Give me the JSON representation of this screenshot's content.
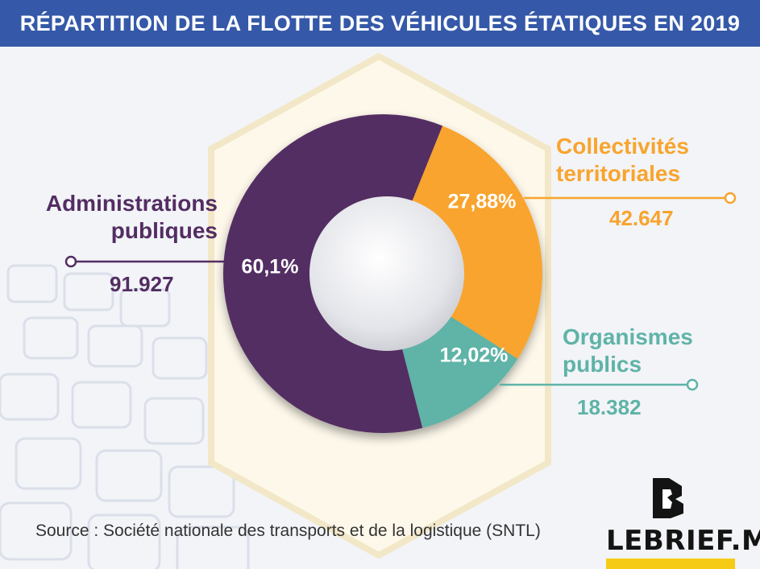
{
  "header": {
    "title": "RÉPARTITION DE LA FLOTTE DES VÉHICULES ÉTATIQUES EN 2019"
  },
  "colors": {
    "header_bg": "#3559a8",
    "administrations": "#532d62",
    "collectivites": "#f8a42d",
    "organismes": "#5fb3a7",
    "brand_bar": "#f6cb16"
  },
  "chart_data": {
    "type": "pie",
    "style": "donut",
    "title": "RÉPARTITION DE LA FLOTTE DES VÉHICULES ÉTATIQUES EN 2019",
    "slices": [
      {
        "name": "Administrations publiques",
        "percent": 60.1,
        "percent_label": "60,1%",
        "value": 91927,
        "value_label": "91.927",
        "color": "#532d62"
      },
      {
        "name": "Collectivités territoriales",
        "percent": 27.88,
        "percent_label": "27,88%",
        "value": 42647,
        "value_label": "42.647",
        "color": "#f8a42d"
      },
      {
        "name": "Organismes publics",
        "percent": 12.02,
        "percent_label": "12,02%",
        "value": 18382,
        "value_label": "18.382",
        "color": "#5fb3a7"
      }
    ]
  },
  "labels": {
    "administrations": {
      "line1": "Administrations",
      "line2": "publiques"
    },
    "collectivites": {
      "line1": "Collectivités",
      "line2": "territoriales"
    },
    "organismes": {
      "line1": "Organismes",
      "line2": "publics"
    }
  },
  "source": "Source : Société nationale des transports et de la logistique (SNTL)",
  "brand": {
    "name": "LEBRIEF.MA",
    "logo_icon": "lebrief-logo-icon"
  }
}
